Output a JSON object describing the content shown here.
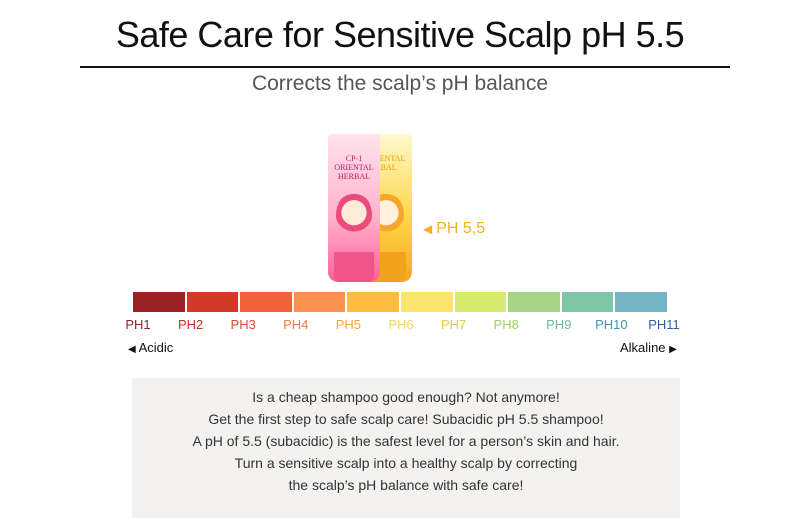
{
  "title": "Safe Care for Sensitive Scalp pH 5.5",
  "subtitle": "Corrects the scalp’s pH balance",
  "product": {
    "front_brand": "CP-1 ORIENTAL HERBAL",
    "back_brand": "P-1 ENTAL RBAL",
    "ph_pointer": "PH 5,5"
  },
  "scale": {
    "colors": [
      "#9b2124",
      "#d03a27",
      "#f1613a",
      "#f8914d",
      "#fdbb44",
      "#fbe46e",
      "#d6ea6c",
      "#a6d487",
      "#7fc6a5",
      "#74b4c4"
    ],
    "labels": [
      {
        "text": "PH1",
        "color": "#9b2124"
      },
      {
        "text": "PH2",
        "color": "#c0322b"
      },
      {
        "text": "PH3",
        "color": "#e04a33"
      },
      {
        "text": "PH4",
        "color": "#f07a3b"
      },
      {
        "text": "PH5",
        "color": "#f6a733"
      },
      {
        "text": "PH6",
        "color": "#f2d36a"
      },
      {
        "text": "PH7",
        "color": "#e3c94a"
      },
      {
        "text": "PH8",
        "color": "#9fcf62"
      },
      {
        "text": "PH9",
        "color": "#6bbd93"
      },
      {
        "text": "PH10",
        "color": "#4c8fb5"
      },
      {
        "text": "PH11",
        "color": "#2e5f9a"
      }
    ],
    "acidic": "Acidic",
    "alkaline": "Alkaline"
  },
  "description": [
    "Is a cheap shampoo good enough? Not anymore!",
    "Get the first step to safe scalp care! Subacidic pH 5.5 shampoo!",
    "A pH of 5.5 (subacidic) is the safest level for a person’s skin and hair.",
    "Turn a sensitive scalp into a healthy scalp by correcting",
    "the scalp’s pH balance with safe care!"
  ]
}
